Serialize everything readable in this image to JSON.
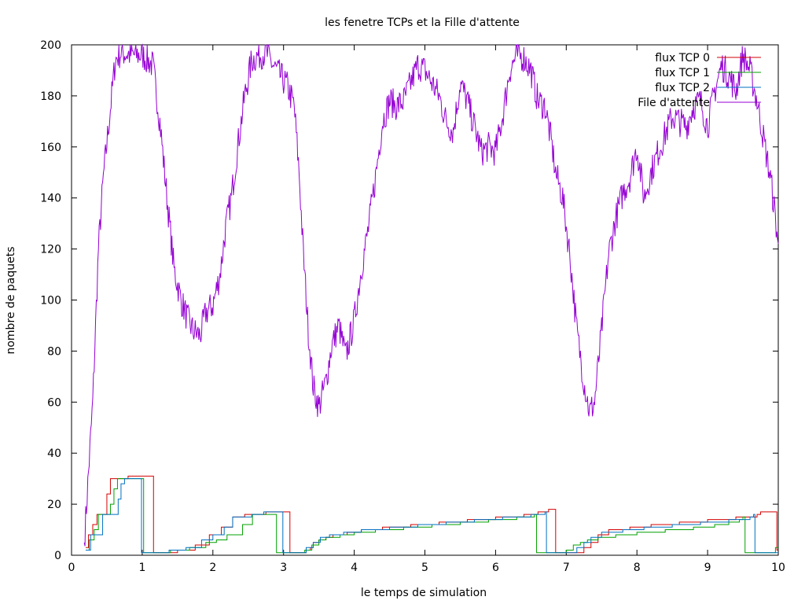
{
  "chart_data": {
    "type": "line",
    "title": "les fenetre TCPs et la Fille d'attente",
    "xlabel": "le temps de simulation",
    "ylabel": "nombre de paquets",
    "xlim": [
      0,
      10
    ],
    "ylim": [
      0,
      200
    ],
    "xticks": [
      "0",
      "1",
      "2",
      "3",
      "4",
      "5",
      "6",
      "7",
      "8",
      "9",
      "10"
    ],
    "yticks": [
      "0",
      "20",
      "40",
      "60",
      "80",
      "100",
      "120",
      "140",
      "160",
      "180",
      "200"
    ],
    "grid": false,
    "legend_position": "top-right",
    "series": [
      {
        "name": "flux TCP 0",
        "color": "#d40000",
        "step": true,
        "points": [
          [
            0.2,
            3
          ],
          [
            0.24,
            8
          ],
          [
            0.3,
            12
          ],
          [
            0.36,
            16
          ],
          [
            0.45,
            16
          ],
          [
            0.5,
            24
          ],
          [
            0.55,
            30
          ],
          [
            0.76,
            30
          ],
          [
            0.8,
            31
          ],
          [
            1.15,
            31
          ],
          [
            1.16,
            1
          ],
          [
            1.45,
            1
          ],
          [
            1.5,
            2
          ],
          [
            1.7,
            2
          ],
          [
            1.75,
            4
          ],
          [
            1.9,
            4
          ],
          [
            1.95,
            8
          ],
          [
            2.08,
            8
          ],
          [
            2.12,
            11
          ],
          [
            2.25,
            11
          ],
          [
            2.28,
            15
          ],
          [
            2.4,
            15
          ],
          [
            2.45,
            16
          ],
          [
            2.7,
            16
          ],
          [
            2.75,
            17
          ],
          [
            3.08,
            17
          ],
          [
            3.09,
            1
          ],
          [
            3.3,
            1
          ],
          [
            3.32,
            2
          ],
          [
            3.38,
            3
          ],
          [
            3.42,
            5
          ],
          [
            3.5,
            6
          ],
          [
            3.6,
            7
          ],
          [
            3.7,
            8
          ],
          [
            3.9,
            9
          ],
          [
            4.1,
            10
          ],
          [
            4.4,
            11
          ],
          [
            4.8,
            12
          ],
          [
            5.2,
            13
          ],
          [
            5.6,
            14
          ],
          [
            6.0,
            15
          ],
          [
            6.4,
            16
          ],
          [
            6.6,
            17
          ],
          [
            6.75,
            18
          ],
          [
            6.84,
            18
          ],
          [
            6.85,
            1
          ],
          [
            7.2,
            1
          ],
          [
            7.25,
            3
          ],
          [
            7.35,
            5
          ],
          [
            7.45,
            8
          ],
          [
            7.6,
            10
          ],
          [
            7.9,
            11
          ],
          [
            8.2,
            12
          ],
          [
            8.6,
            13
          ],
          [
            9.0,
            14
          ],
          [
            9.4,
            15
          ],
          [
            9.7,
            16
          ],
          [
            9.75,
            17
          ],
          [
            9.97,
            17
          ],
          [
            9.98,
            2
          ],
          [
            10,
            2
          ]
        ]
      },
      {
        "name": "flux TCP 1",
        "color": "#00a000",
        "step": true,
        "points": [
          [
            0.2,
            2
          ],
          [
            0.25,
            6
          ],
          [
            0.32,
            10
          ],
          [
            0.38,
            16
          ],
          [
            0.5,
            16
          ],
          [
            0.55,
            20
          ],
          [
            0.6,
            26
          ],
          [
            0.65,
            30
          ],
          [
            1.0,
            30
          ],
          [
            1.02,
            1
          ],
          [
            1.35,
            1
          ],
          [
            1.4,
            2
          ],
          [
            1.62,
            2
          ],
          [
            1.67,
            3
          ],
          [
            1.85,
            3
          ],
          [
            1.9,
            5
          ],
          [
            2.0,
            5
          ],
          [
            2.05,
            6
          ],
          [
            2.15,
            6
          ],
          [
            2.2,
            8
          ],
          [
            2.38,
            8
          ],
          [
            2.42,
            12
          ],
          [
            2.52,
            12
          ],
          [
            2.56,
            16
          ],
          [
            2.88,
            16
          ],
          [
            2.9,
            1
          ],
          [
            3.25,
            1
          ],
          [
            3.3,
            2
          ],
          [
            3.4,
            4
          ],
          [
            3.5,
            6
          ],
          [
            3.6,
            7
          ],
          [
            3.8,
            8
          ],
          [
            4.0,
            9
          ],
          [
            4.3,
            10
          ],
          [
            4.7,
            11
          ],
          [
            5.1,
            12
          ],
          [
            5.5,
            13
          ],
          [
            5.9,
            14
          ],
          [
            6.3,
            15
          ],
          [
            6.55,
            16
          ],
          [
            6.58,
            1
          ],
          [
            6.95,
            1
          ],
          [
            7.0,
            2
          ],
          [
            7.1,
            4
          ],
          [
            7.2,
            5
          ],
          [
            7.3,
            6
          ],
          [
            7.45,
            7
          ],
          [
            7.7,
            8
          ],
          [
            8.0,
            9
          ],
          [
            8.4,
            10
          ],
          [
            8.8,
            11
          ],
          [
            9.1,
            12
          ],
          [
            9.3,
            13
          ],
          [
            9.45,
            14
          ],
          [
            9.5,
            15
          ],
          [
            9.53,
            1
          ],
          [
            9.95,
            1
          ],
          [
            9.96,
            3
          ],
          [
            10,
            3
          ]
        ]
      },
      {
        "name": "flux TCP 2",
        "color": "#0070c0",
        "step": true,
        "points": [
          [
            0.2,
            2
          ],
          [
            0.27,
            8
          ],
          [
            0.4,
            8
          ],
          [
            0.44,
            16
          ],
          [
            0.62,
            16
          ],
          [
            0.66,
            22
          ],
          [
            0.7,
            28
          ],
          [
            0.75,
            30
          ],
          [
            0.97,
            30
          ],
          [
            0.99,
            1
          ],
          [
            1.33,
            1
          ],
          [
            1.38,
            2
          ],
          [
            1.58,
            2
          ],
          [
            1.62,
            3
          ],
          [
            1.8,
            3
          ],
          [
            1.84,
            6
          ],
          [
            1.95,
            6
          ],
          [
            2.0,
            8
          ],
          [
            2.12,
            8
          ],
          [
            2.16,
            11
          ],
          [
            2.24,
            11
          ],
          [
            2.28,
            15
          ],
          [
            2.5,
            15
          ],
          [
            2.55,
            16
          ],
          [
            2.68,
            16
          ],
          [
            2.72,
            17
          ],
          [
            2.98,
            17
          ],
          [
            2.99,
            1
          ],
          [
            3.28,
            1
          ],
          [
            3.32,
            3
          ],
          [
            3.42,
            5
          ],
          [
            3.52,
            7
          ],
          [
            3.65,
            8
          ],
          [
            3.85,
            9
          ],
          [
            4.1,
            10
          ],
          [
            4.5,
            11
          ],
          [
            4.9,
            12
          ],
          [
            5.3,
            13
          ],
          [
            5.7,
            14
          ],
          [
            6.1,
            15
          ],
          [
            6.5,
            16
          ],
          [
            6.7,
            17
          ],
          [
            6.72,
            1
          ],
          [
            7.1,
            1
          ],
          [
            7.15,
            3
          ],
          [
            7.25,
            5
          ],
          [
            7.35,
            7
          ],
          [
            7.5,
            9
          ],
          [
            7.8,
            10
          ],
          [
            8.1,
            11
          ],
          [
            8.5,
            12
          ],
          [
            8.9,
            13
          ],
          [
            9.3,
            14
          ],
          [
            9.6,
            15
          ],
          [
            9.65,
            16
          ],
          [
            9.67,
            1
          ],
          [
            9.98,
            1
          ],
          [
            10,
            1
          ]
        ]
      },
      {
        "name": "File d'attente",
        "color": "#9400d3",
        "step": false,
        "noise": 6,
        "points": [
          [
            0.18,
            5
          ],
          [
            0.3,
            60
          ],
          [
            0.38,
            120
          ],
          [
            0.45,
            148
          ],
          [
            0.55,
            175
          ],
          [
            0.62,
            194
          ],
          [
            0.7,
            197
          ],
          [
            0.85,
            196
          ],
          [
            1.0,
            196
          ],
          [
            1.15,
            192
          ],
          [
            1.25,
            170
          ],
          [
            1.35,
            140
          ],
          [
            1.45,
            112
          ],
          [
            1.55,
            100
          ],
          [
            1.65,
            92
          ],
          [
            1.72,
            88
          ],
          [
            1.82,
            86
          ],
          [
            1.9,
            95
          ],
          [
            2.0,
            98
          ],
          [
            2.1,
            110
          ],
          [
            2.18,
            128
          ],
          [
            2.26,
            140
          ],
          [
            2.35,
            160
          ],
          [
            2.45,
            180
          ],
          [
            2.55,
            194
          ],
          [
            2.65,
            196
          ],
          [
            2.75,
            197
          ],
          [
            2.85,
            192
          ],
          [
            2.95,
            188
          ],
          [
            3.05,
            184
          ],
          [
            3.15,
            176
          ],
          [
            3.22,
            150
          ],
          [
            3.28,
            118
          ],
          [
            3.35,
            88
          ],
          [
            3.42,
            66
          ],
          [
            3.5,
            58
          ],
          [
            3.6,
            68
          ],
          [
            3.68,
            82
          ],
          [
            3.78,
            90
          ],
          [
            3.88,
            78
          ],
          [
            4.0,
            92
          ],
          [
            4.1,
            112
          ],
          [
            4.2,
            128
          ],
          [
            4.3,
            148
          ],
          [
            4.4,
            170
          ],
          [
            4.5,
            178
          ],
          [
            4.6,
            176
          ],
          [
            4.7,
            178
          ],
          [
            4.8,
            185
          ],
          [
            4.9,
            192
          ],
          [
            5.0,
            190
          ],
          [
            5.1,
            185
          ],
          [
            5.2,
            180
          ],
          [
            5.3,
            170
          ],
          [
            5.4,
            166
          ],
          [
            5.5,
            185
          ],
          [
            5.6,
            178
          ],
          [
            5.7,
            168
          ],
          [
            5.8,
            158
          ],
          [
            5.9,
            160
          ],
          [
            6.0,
            158
          ],
          [
            6.1,
            172
          ],
          [
            6.2,
            190
          ],
          [
            6.3,
            196
          ],
          [
            6.4,
            195
          ],
          [
            6.5,
            190
          ],
          [
            6.6,
            178
          ],
          [
            6.7,
            176
          ],
          [
            6.8,
            160
          ],
          [
            6.85,
            150
          ],
          [
            6.95,
            140
          ],
          [
            7.05,
            118
          ],
          [
            7.15,
            88
          ],
          [
            7.25,
            68
          ],
          [
            7.33,
            56
          ],
          [
            7.4,
            60
          ],
          [
            7.5,
            88
          ],
          [
            7.6,
            118
          ],
          [
            7.7,
            132
          ],
          [
            7.8,
            142
          ],
          [
            7.9,
            148
          ],
          [
            8.0,
            160
          ],
          [
            8.1,
            140
          ],
          [
            8.2,
            150
          ],
          [
            8.3,
            158
          ],
          [
            8.4,
            165
          ],
          [
            8.5,
            172
          ],
          [
            8.6,
            170
          ],
          [
            8.7,
            168
          ],
          [
            8.8,
            176
          ],
          [
            8.9,
            178
          ],
          [
            9.0,
            168
          ],
          [
            9.1,
            182
          ],
          [
            9.2,
            192
          ],
          [
            9.3,
            188
          ],
          [
            9.4,
            182
          ],
          [
            9.5,
            196
          ],
          [
            9.6,
            190
          ],
          [
            9.7,
            178
          ],
          [
            9.8,
            162
          ],
          [
            9.9,
            146
          ],
          [
            10.0,
            122
          ]
        ]
      }
    ]
  }
}
